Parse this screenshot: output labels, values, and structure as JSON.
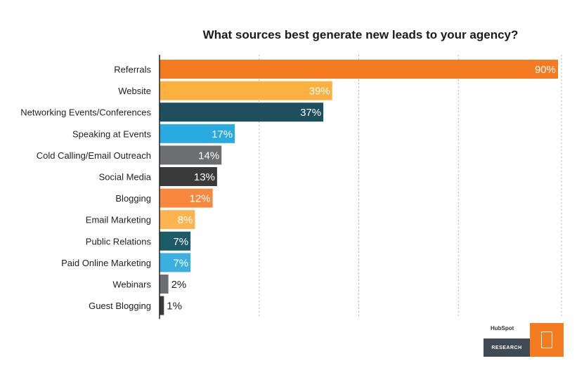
{
  "chart_data": {
    "type": "bar",
    "orientation": "horizontal",
    "title": "What sources best generate new leads to your agency?",
    "categories": [
      "Referrals",
      "Website",
      "Networking Events/Conferences",
      "Speaking at Events",
      "Cold Calling/Email Outreach",
      "Social Media",
      "Blogging",
      "Email Marketing",
      "Public Relations",
      "Paid Online Marketing",
      "Webinars",
      "Guest Blogging"
    ],
    "values": [
      90,
      39,
      37,
      17,
      14,
      13,
      12,
      8,
      7,
      7,
      2,
      1
    ],
    "value_labels": [
      "90%",
      "39%",
      "37%",
      "17%",
      "14%",
      "13%",
      "12%",
      "8%",
      "7%",
      "7%",
      "2%",
      "1%"
    ],
    "colors": [
      "#f47b20",
      "#fbb040",
      "#1d4f5c",
      "#29abe2",
      "#6d6e71",
      "#3a3a3a",
      "#f7883d",
      "#fbb450",
      "#1d5c66",
      "#3bb0e0",
      "#6d6e71",
      "#3a3a3a"
    ],
    "xlim": [
      0,
      90
    ],
    "grid": true,
    "legend": "none"
  },
  "branding": {
    "brand": "HubSpot",
    "label": "RESEARCH"
  }
}
